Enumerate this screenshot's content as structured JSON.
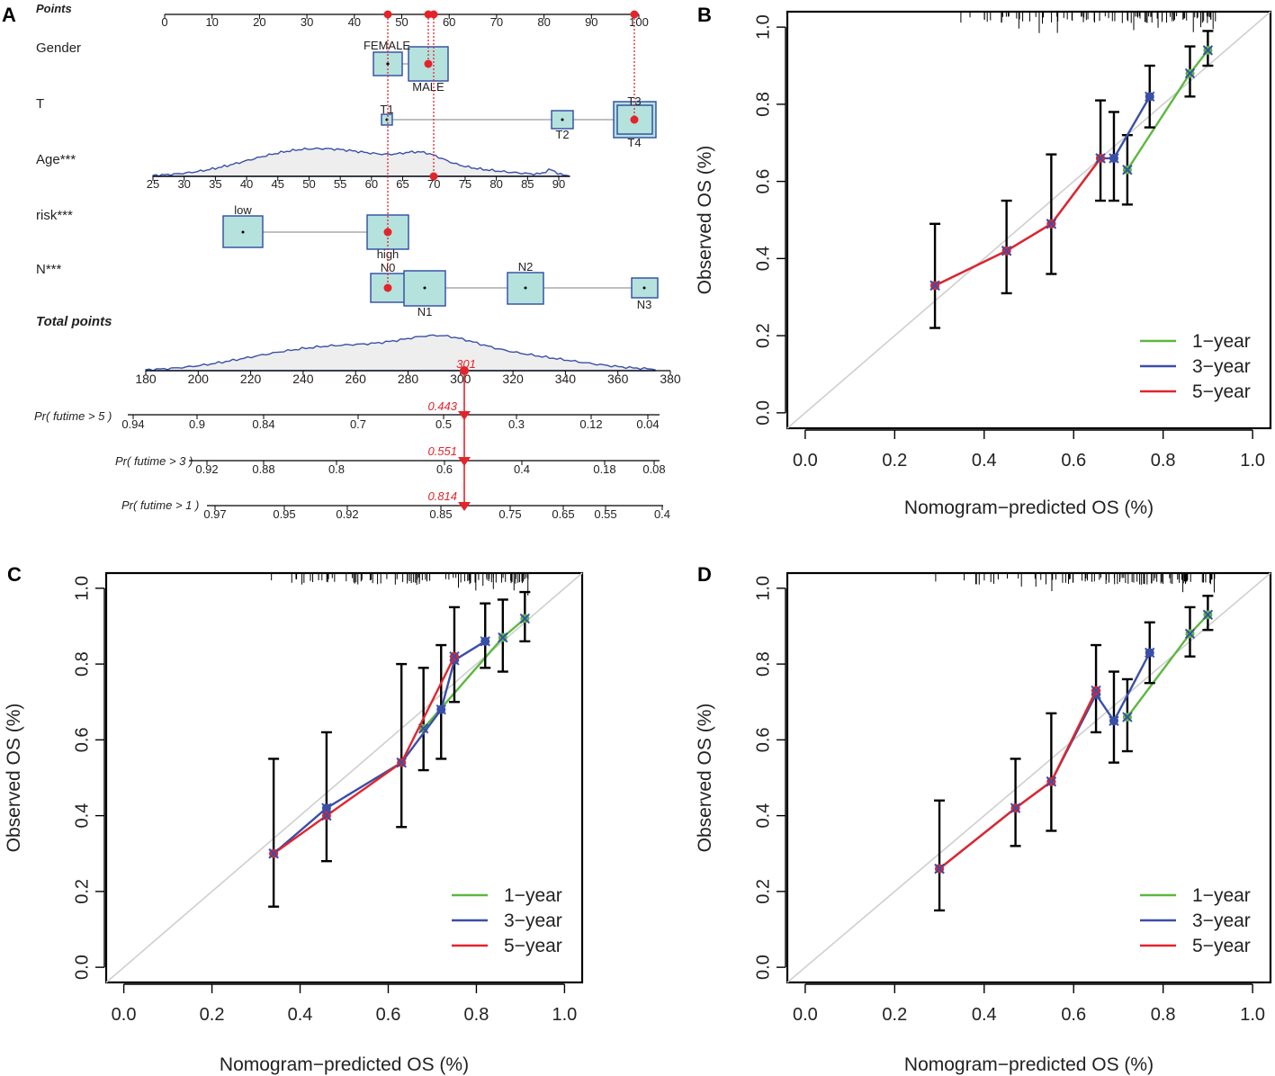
{
  "panels": {
    "a": "A",
    "b": "B",
    "c": "C",
    "d": "D"
  },
  "colors": {
    "one_year": "#5cb83f",
    "three_year": "#3a4fa8",
    "five_year": "#e3242b",
    "box_fill": "#b5e2dd",
    "box_stroke": "#2f4aa3",
    "density": "#3a4fa8",
    "errorbar": "#000000",
    "diagonal": "#cfcfcf"
  },
  "nomogram": {
    "points": {
      "label": "Points",
      "ticks": [
        "0",
        "10",
        "20",
        "30",
        "40",
        "50",
        "60",
        "70",
        "80",
        "90",
        "100"
      ],
      "min": 0,
      "max": 100
    },
    "gender": {
      "label": "Gender",
      "levels": [
        {
          "name": "FEMALE",
          "pts": 46
        },
        {
          "name": "MALE",
          "pts": 54
        }
      ],
      "selected": "MALE",
      "selected_pts": 54
    },
    "t": {
      "label": "T",
      "levels": [
        {
          "name": "T1",
          "pts": 46
        },
        {
          "name": "T2",
          "pts": 83
        },
        {
          "name": "T3",
          "pts": 98
        },
        {
          "name": "T4",
          "pts": 98
        }
      ],
      "selected": "T4",
      "selected_pts": 98
    },
    "age": {
      "label": "Age***",
      "ticks": [
        "25",
        "30",
        "35",
        "40",
        "45",
        "50",
        "55",
        "60",
        "65",
        "70",
        "75",
        "80",
        "85",
        "90"
      ],
      "min": 25,
      "max": 90,
      "selected_value": 70
    },
    "risk": {
      "label": "risk***",
      "levels": [
        {
          "name": "low",
          "pts": 16
        },
        {
          "name": "high",
          "pts": 46
        }
      ],
      "selected": "high",
      "selected_pts": 46
    },
    "n": {
      "label": "N***",
      "levels": [
        {
          "name": "N0",
          "pts": 46
        },
        {
          "name": "N1",
          "pts": 54
        },
        {
          "name": "N2",
          "pts": 75
        },
        {
          "name": "N3",
          "pts": 100
        }
      ],
      "selected": "N0",
      "selected_pts": 46
    },
    "total_points": {
      "label": "Total points",
      "ticks": [
        "180",
        "200",
        "220",
        "240",
        "260",
        "280",
        "300",
        "320",
        "340",
        "360",
        "380"
      ],
      "min": 180,
      "max": 380,
      "value": "301"
    },
    "pr5": {
      "label": "Pr( futime > 5 )",
      "ticks": [
        "0.94",
        "0.9",
        "0.84",
        "0.7",
        "0.5",
        "0.3",
        "0.12",
        "0.04"
      ],
      "value": "0.443"
    },
    "pr3": {
      "label": "Pr( futime > 3 )",
      "ticks": [
        "0.92",
        "0.88",
        "0.8",
        "0.6",
        "0.4",
        "0.18",
        "0.08"
      ],
      "value": "0.551"
    },
    "pr1": {
      "label": "Pr( futime > 1 )",
      "ticks": [
        "0.97",
        "0.95",
        "0.92",
        "0.85",
        "0.75",
        "0.65",
        "0.55",
        "0.4"
      ],
      "value": "0.814"
    }
  },
  "chart_data": [
    {
      "panel": "B",
      "type": "line",
      "xlabel": "Nomogram−predicted OS (%)",
      "ylabel": "Observed OS (%)",
      "xlim": [
        0,
        1
      ],
      "ylim": [
        0,
        1
      ],
      "xticks": [
        "0.0",
        "0.2",
        "0.4",
        "0.6",
        "0.8",
        "1.0"
      ],
      "yticks": [
        "0.0",
        "0.2",
        "0.4",
        "0.6",
        "0.8",
        "1.0"
      ],
      "legend": [
        "1−year",
        "3−year",
        "5−year"
      ],
      "legend_position": "bottom-right",
      "series": [
        {
          "name": "1-year",
          "x": [
            0.72,
            0.86,
            0.9
          ],
          "y": [
            0.63,
            0.88,
            0.94
          ],
          "err_lo": [
            0.54,
            0.82,
            0.9
          ],
          "err_hi": [
            0.72,
            0.95,
            0.99
          ]
        },
        {
          "name": "3-year",
          "x": [
            0.29,
            0.45,
            0.55,
            0.66,
            0.69,
            0.77
          ],
          "y": [
            0.33,
            0.42,
            0.49,
            0.66,
            0.66,
            0.82
          ],
          "err_lo": [
            0.22,
            0.31,
            0.36,
            0.55,
            0.55,
            0.74
          ],
          "err_hi": [
            0.49,
            0.55,
            0.67,
            0.81,
            0.78,
            0.9
          ]
        },
        {
          "name": "5-year",
          "x": [
            0.29,
            0.45,
            0.55,
            0.66
          ],
          "y": [
            0.33,
            0.42,
            0.49,
            0.66
          ],
          "err_lo": [],
          "err_hi": []
        }
      ]
    },
    {
      "panel": "C",
      "type": "line",
      "xlabel": "Nomogram−predicted OS (%)",
      "ylabel": "Observed OS (%)",
      "xlim": [
        0,
        1
      ],
      "ylim": [
        0,
        1
      ],
      "xticks": [
        "0.0",
        "0.2",
        "0.4",
        "0.6",
        "0.8",
        "1.0"
      ],
      "yticks": [
        "0.0",
        "0.2",
        "0.4",
        "0.6",
        "0.8",
        "1.0"
      ],
      "legend": [
        "1−year",
        "3−year",
        "5−year"
      ],
      "legend_position": "bottom-right",
      "series": [
        {
          "name": "1-year",
          "x": [
            0.68,
            0.86,
            0.91
          ],
          "y": [
            0.63,
            0.87,
            0.92
          ],
          "err_lo": [
            0.52,
            0.78,
            0.86
          ],
          "err_hi": [
            0.79,
            0.97,
            0.99
          ]
        },
        {
          "name": "3-year",
          "x": [
            0.34,
            0.46,
            0.63,
            0.72,
            0.75,
            0.82
          ],
          "y": [
            0.3,
            0.42,
            0.54,
            0.68,
            0.81,
            0.86
          ],
          "err_lo": [
            0.16,
            0.28,
            0.37,
            0.55,
            0.7,
            0.79
          ],
          "err_hi": [
            0.55,
            0.62,
            0.8,
            0.85,
            0.95,
            0.96
          ]
        },
        {
          "name": "5-year",
          "x": [
            0.34,
            0.46,
            0.63,
            0.75
          ],
          "y": [
            0.3,
            0.4,
            0.54,
            0.82
          ],
          "err_lo": [],
          "err_hi": []
        }
      ]
    },
    {
      "panel": "D",
      "type": "line",
      "xlabel": "Nomogram−predicted OS (%)",
      "ylabel": "Observed OS (%)",
      "xlim": [
        0,
        1
      ],
      "ylim": [
        0,
        1
      ],
      "xticks": [
        "0.0",
        "0.2",
        "0.4",
        "0.6",
        "0.8",
        "1.0"
      ],
      "yticks": [
        "0.0",
        "0.2",
        "0.4",
        "0.6",
        "0.8",
        "1.0"
      ],
      "legend": [
        "1−year",
        "3−year",
        "5−year"
      ],
      "legend_position": "bottom-right",
      "series": [
        {
          "name": "1-year",
          "x": [
            0.72,
            0.86,
            0.9
          ],
          "y": [
            0.66,
            0.88,
            0.93
          ],
          "err_lo": [
            0.57,
            0.82,
            0.89
          ],
          "err_hi": [
            0.76,
            0.95,
            0.98
          ]
        },
        {
          "name": "3-year",
          "x": [
            0.3,
            0.47,
            0.55,
            0.65,
            0.69,
            0.77
          ],
          "y": [
            0.26,
            0.42,
            0.49,
            0.72,
            0.65,
            0.83
          ],
          "err_lo": [
            0.15,
            0.32,
            0.36,
            0.62,
            0.54,
            0.75
          ],
          "err_hi": [
            0.44,
            0.55,
            0.67,
            0.85,
            0.78,
            0.91
          ]
        },
        {
          "name": "5-year",
          "x": [
            0.3,
            0.47,
            0.55,
            0.65
          ],
          "y": [
            0.26,
            0.42,
            0.49,
            0.73
          ],
          "err_lo": [],
          "err_hi": []
        }
      ]
    }
  ]
}
